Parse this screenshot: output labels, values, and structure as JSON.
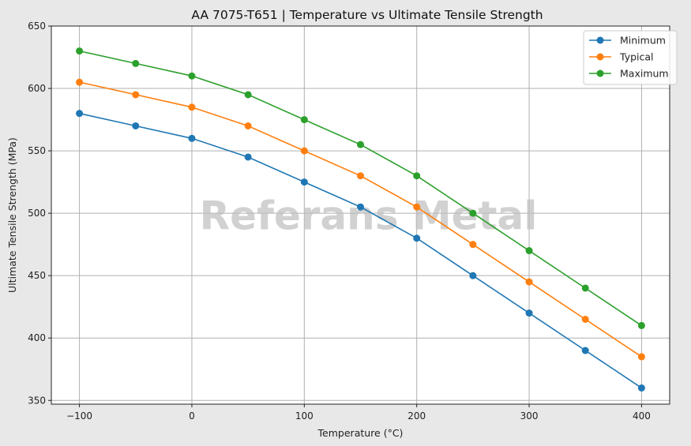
{
  "chart_data": {
    "type": "line",
    "title": "AA 7075-T651 | Temperature vs Ultimate Tensile Strength",
    "xlabel": "Temperature (°C)",
    "ylabel": "Ultimate Tensile Strength (MPa)",
    "x": [
      -100,
      -50,
      0,
      50,
      100,
      150,
      200,
      250,
      300,
      350,
      400
    ],
    "xticks": [
      -100,
      0,
      100,
      200,
      300,
      400
    ],
    "xtick_labels": [
      "−100",
      "0",
      "100",
      "200",
      "300",
      "400"
    ],
    "yticks": [
      350,
      400,
      450,
      500,
      550,
      600,
      650
    ],
    "xlim": [
      -125,
      425
    ],
    "ylim": [
      347,
      650
    ],
    "grid": true,
    "legend_position": "top-right",
    "watermark": "Referans Metal",
    "series": [
      {
        "name": "Minimum",
        "color": "#1f77b4",
        "values": [
          580,
          570,
          560,
          545,
          525,
          505,
          480,
          450,
          420,
          390,
          360
        ]
      },
      {
        "name": "Typical",
        "color": "#ff7f0e",
        "values": [
          605,
          595,
          585,
          570,
          550,
          530,
          505,
          475,
          445,
          415,
          385
        ]
      },
      {
        "name": "Maximum",
        "color": "#2ca02c",
        "values": [
          630,
          620,
          610,
          595,
          575,
          555,
          530,
          500,
          470,
          440,
          410
        ]
      }
    ]
  }
}
